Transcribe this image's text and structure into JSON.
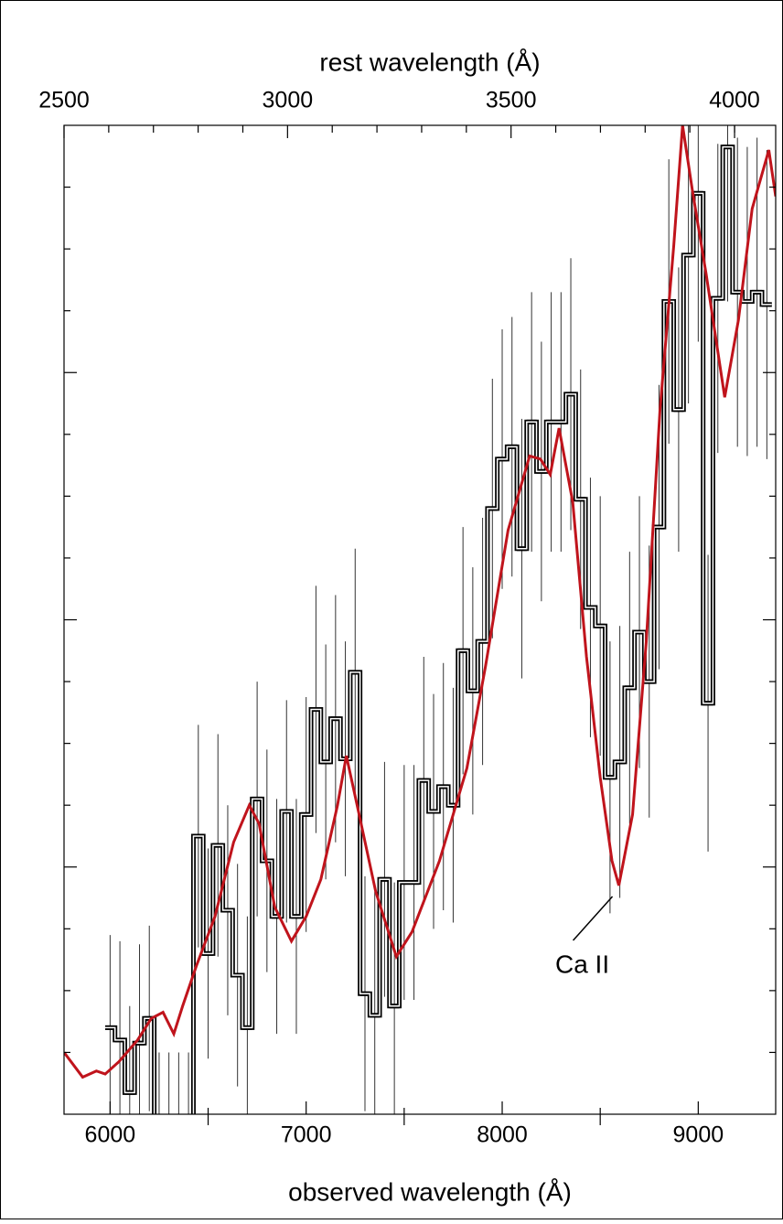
{
  "chart_data": {
    "type": "spectrum",
    "x2label": "rest wavelength (Å)",
    "xlabel": "observed wavelength (Å)",
    "xlim": [
      5765,
      9395
    ],
    "xticks": [
      6000,
      7000,
      8000,
      9000
    ],
    "xminor_ticks": [
      6500,
      7500,
      8500
    ],
    "x2lim": [
      2500,
      4092
    ],
    "x2ticks": [
      2500,
      3000,
      3500,
      4000
    ],
    "x2minor_ticks": [
      2600,
      2700,
      2800,
      2900,
      3100,
      3200,
      3300,
      3400,
      3600,
      3700,
      3800,
      3900,
      4000
    ],
    "ylim": [
      0,
      16
    ],
    "yticks": [
      4,
      8,
      12
    ],
    "yminor_ticks": [
      1,
      2,
      3,
      5,
      6,
      7,
      9,
      10,
      11,
      13,
      14,
      15
    ],
    "annotation": {
      "text": "Ca II",
      "x": 8595,
      "y": 3.7
    },
    "histogram": {
      "color": "#000000",
      "bins": [
        5975,
        6025,
        6075,
        6125,
        6175,
        6225,
        6275,
        6325,
        6375,
        6425,
        6475,
        6525,
        6575,
        6625,
        6675,
        6725,
        6775,
        6825,
        6875,
        6925,
        6975,
        7025,
        7075,
        7125,
        7175,
        7225,
        7275,
        7325,
        7375,
        7425,
        7475,
        7525,
        7575,
        7625,
        7675,
        7725,
        7775,
        7825,
        7875,
        7925,
        7975,
        8025,
        8075,
        8125,
        8175,
        8225,
        8275,
        8325,
        8375,
        8425,
        8475,
        8525,
        8575,
        8625,
        8675,
        8725,
        8775,
        8825,
        8875,
        8925,
        8975,
        9025,
        9075,
        9125,
        9175,
        9225,
        9275,
        9325,
        9375
      ],
      "values": [
        1.4,
        1.2,
        0.35,
        1.15,
        1.55,
        -0.5,
        -0.5,
        -0.5,
        -0.5,
        4.5,
        2.6,
        4.35,
        3.3,
        2.25,
        1.4,
        5.1,
        4.1,
        3.2,
        4.9,
        3.2,
        4.85,
        6.55,
        5.7,
        6.4,
        5.75,
        7.15,
        1.95,
        1.6,
        3.8,
        1.75,
        3.75,
        3.75,
        5.4,
        4.9,
        5.3,
        5.0,
        7.5,
        6.85,
        7.65,
        9.8,
        10.6,
        10.8,
        9.15,
        11.2,
        10.4,
        11.2,
        11.2,
        11.65,
        9.95,
        8.2,
        7.9,
        5.45,
        5.7,
        6.9,
        7.8,
        7.0,
        9.5,
        13.15,
        11.4,
        13.9,
        14.9,
        6.65,
        13.2,
        15.65,
        13.3,
        13.15,
        13.3,
        13.1
      ],
      "errors": [
        1.5,
        1.6,
        1.4,
        1.6,
        1.5,
        1.5,
        1.5,
        1.5,
        1.5,
        1.8,
        1.7,
        1.8,
        1.7,
        1.8,
        1.8,
        1.9,
        1.8,
        1.9,
        1.8,
        1.9,
        1.9,
        2.0,
        1.9,
        2.0,
        1.9,
        2.0,
        1.9,
        2.0,
        1.9,
        2.0,
        1.9,
        1.9,
        2.0,
        1.9,
        2.0,
        1.9,
        2.0,
        2.0,
        2.0,
        2.1,
        2.1,
        2.1,
        2.1,
        2.1,
        2.1,
        2.1,
        2.1,
        2.2,
        2.1,
        2.1,
        2.1,
        2.2,
        2.2,
        2.2,
        2.2,
        2.2,
        2.3,
        2.3,
        2.3,
        2.4,
        2.4,
        2.4,
        2.5,
        2.5,
        2.5,
        2.5,
        2.5,
        2.5
      ]
    },
    "model": {
      "color": "#c0141c",
      "x": [
        5765,
        5860,
        5930,
        5975,
        6045,
        6140,
        6210,
        6270,
        6325,
        6370,
        6440,
        6535,
        6630,
        6710,
        6760,
        6840,
        6925,
        7000,
        7075,
        7160,
        7205,
        7260,
        7355,
        7460,
        7540,
        7680,
        7820,
        7915,
        8030,
        8140,
        8195,
        8245,
        8290,
        8360,
        8430,
        8500,
        8560,
        8595,
        8665,
        8735,
        8805,
        8875,
        8920,
        8970,
        9040,
        9135,
        9205,
        9275,
        9360,
        9395
      ],
      "values": [
        1.0,
        0.6,
        0.7,
        0.65,
        0.85,
        1.2,
        1.55,
        1.65,
        1.3,
        1.75,
        2.4,
        3.2,
        4.4,
        5.0,
        4.7,
        3.35,
        2.8,
        3.2,
        3.8,
        5.0,
        5.8,
        5.0,
        3.6,
        2.55,
        2.95,
        4.1,
        5.6,
        7.25,
        9.45,
        10.65,
        10.6,
        10.35,
        11.1,
        9.9,
        7.4,
        5.45,
        4.1,
        3.7,
        4.85,
        7.65,
        11.4,
        14.05,
        16.0,
        14.95,
        13.6,
        11.6,
        12.85,
        14.65,
        15.6,
        14.85
      ]
    }
  }
}
